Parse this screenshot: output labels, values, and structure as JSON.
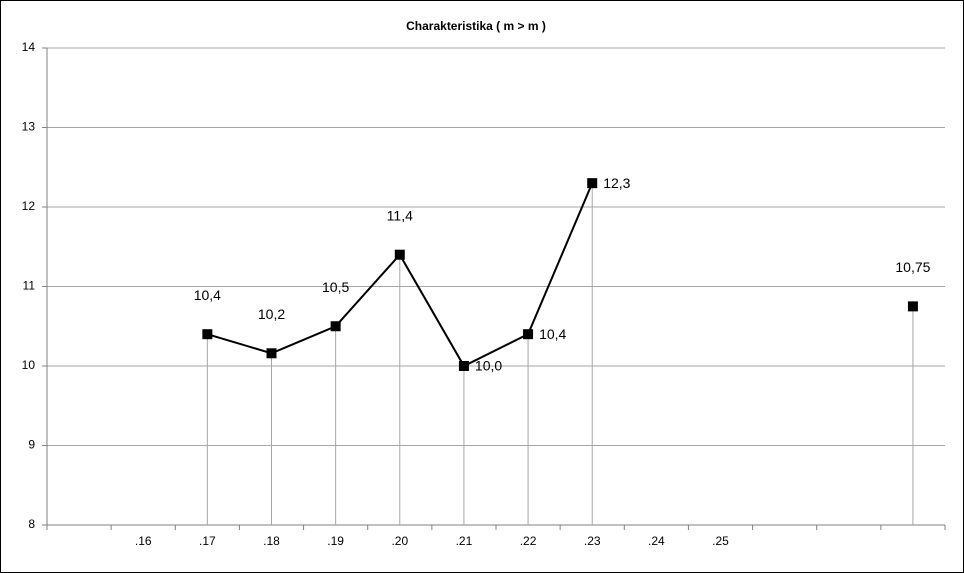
{
  "chart_data": {
    "type": "line",
    "title": "Charakteristika ( m > m )",
    "categories": [
      null,
      ".16",
      ".17",
      ".18",
      ".19",
      ".20",
      ".21",
      ".22",
      ".23",
      ".24",
      ".25",
      null,
      null,
      null
    ],
    "series": [
      {
        "color": "#000000",
        "values": [
          null,
          null,
          10.4,
          10.16,
          10.5,
          11.4,
          10.0,
          10.4,
          12.3,
          null,
          null,
          null,
          null,
          10.75
        ],
        "value_labels": [
          null,
          null,
          "10,4",
          "10,2",
          "10,5",
          "11,4",
          "10,0",
          "10,4",
          "12,3",
          null,
          null,
          null,
          null,
          "10,75"
        ]
      }
    ],
    "ylim": [
      8,
      14
    ],
    "yticks": [
      8,
      9,
      10,
      11,
      12,
      13,
      14
    ],
    "grid": true
  }
}
